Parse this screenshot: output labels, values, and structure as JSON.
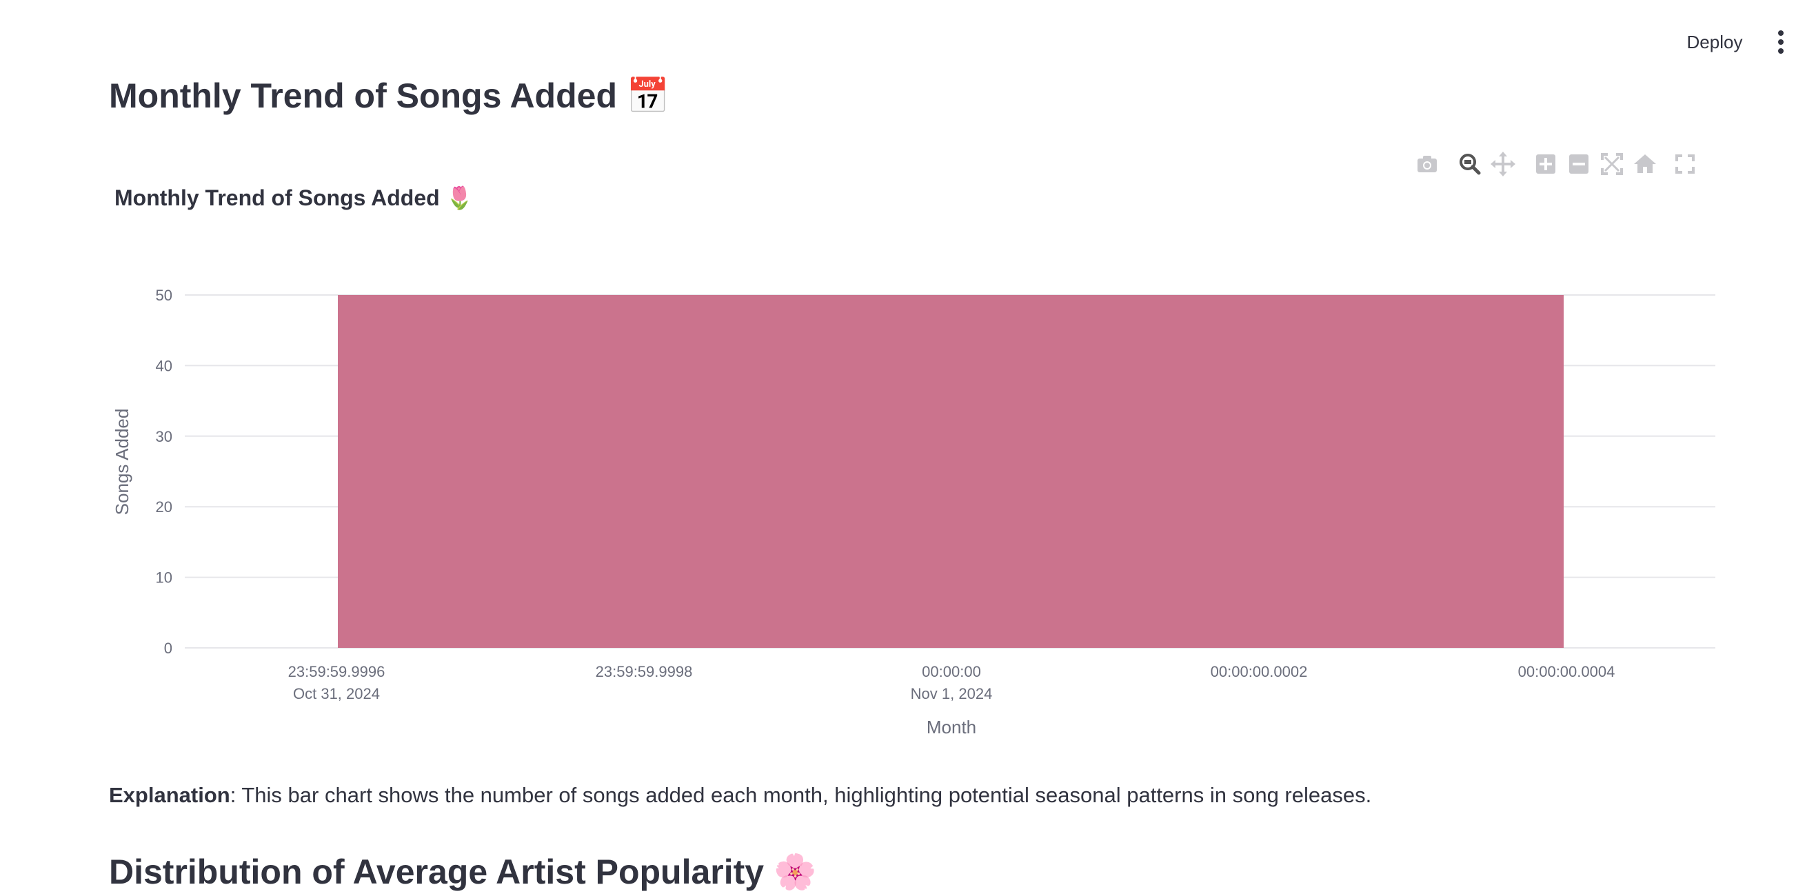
{
  "header": {
    "deploy_label": "Deploy",
    "menu_icon": "more-vertical-icon"
  },
  "page": {
    "title": "Monthly Trend of Songs Added 📅",
    "explanation_label": "Explanation",
    "explanation_text": ": This bar chart shows the number of songs added each month, highlighting potential seasonal patterns in song releases.",
    "next_section_title": "Distribution of Average Artist Popularity 🌸"
  },
  "modebar": {
    "icons": [
      "camera-icon",
      "zoom-icon",
      "pan-icon",
      "zoom-in-icon",
      "zoom-out-icon",
      "autoscale-icon",
      "reset-axes-icon",
      "fullscreen-icon"
    ]
  },
  "colors": {
    "bar": "#CB738D",
    "grid": "#E6E6EA",
    "axis_text": "#6B6E7C",
    "modebar_icon": "#C8C8CC",
    "modebar_active": "#555555"
  },
  "chart_data": {
    "type": "bar",
    "title": "Monthly Trend of Songs Added 🌷",
    "xlabel": "Month",
    "ylabel": "Songs Added",
    "ylim": [
      0,
      50
    ],
    "yticks": [
      0,
      10,
      20,
      30,
      40,
      50
    ],
    "xticks": [
      {
        "line1": "23:59:59.9996",
        "line2": "Oct 31, 2024"
      },
      {
        "line1": "23:59:59.9998",
        "line2": ""
      },
      {
        "line1": "00:00:00",
        "line2": "Nov 1, 2024"
      },
      {
        "line1": "00:00:00.0002",
        "line2": ""
      },
      {
        "line1": "00:00:00.0004",
        "line2": ""
      }
    ],
    "categories": [
      "2024-11-01"
    ],
    "values": [
      50
    ],
    "grid": true,
    "legend": "none"
  }
}
